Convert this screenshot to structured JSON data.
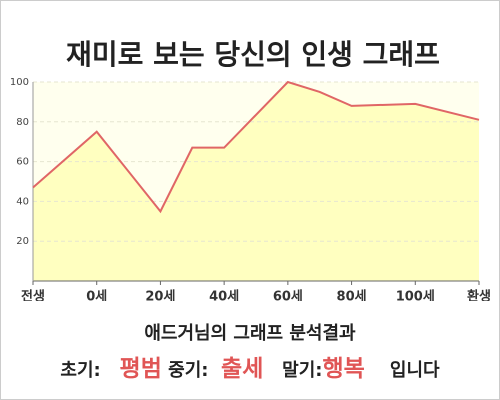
{
  "chart_data": {
    "type": "area",
    "title": "재미로 보는 당신의 인생 그래프",
    "x": [
      -20,
      0,
      20,
      30,
      40,
      60,
      70,
      80,
      100,
      120
    ],
    "values": [
      47,
      75,
      35,
      67,
      67,
      100,
      95,
      88,
      89,
      81
    ],
    "color": "#e06666",
    "fill": "#ffffc0",
    "xlim": [
      -20,
      120
    ],
    "xticks": [
      {
        "value": -20,
        "label": "전생"
      },
      {
        "value": 0,
        "label": "0세"
      },
      {
        "value": 20,
        "label": "20세"
      },
      {
        "value": 40,
        "label": "40세"
      },
      {
        "value": 60,
        "label": "60세"
      },
      {
        "value": 80,
        "label": "80세"
      },
      {
        "value": 100,
        "label": "100세"
      },
      {
        "value": 120,
        "label": "환생"
      }
    ],
    "ylim": [
      0,
      100
    ],
    "yticks": [
      20,
      40,
      60,
      80,
      100
    ],
    "grid": true
  },
  "footer": {
    "subtitle": "애드거님의 그래프 분석결과",
    "early_label": "초기:",
    "early": "평범",
    "middle_label": "중기:",
    "middle": "출세",
    "late_label": "말기:",
    "late": "행복",
    "ending": "입니다"
  }
}
